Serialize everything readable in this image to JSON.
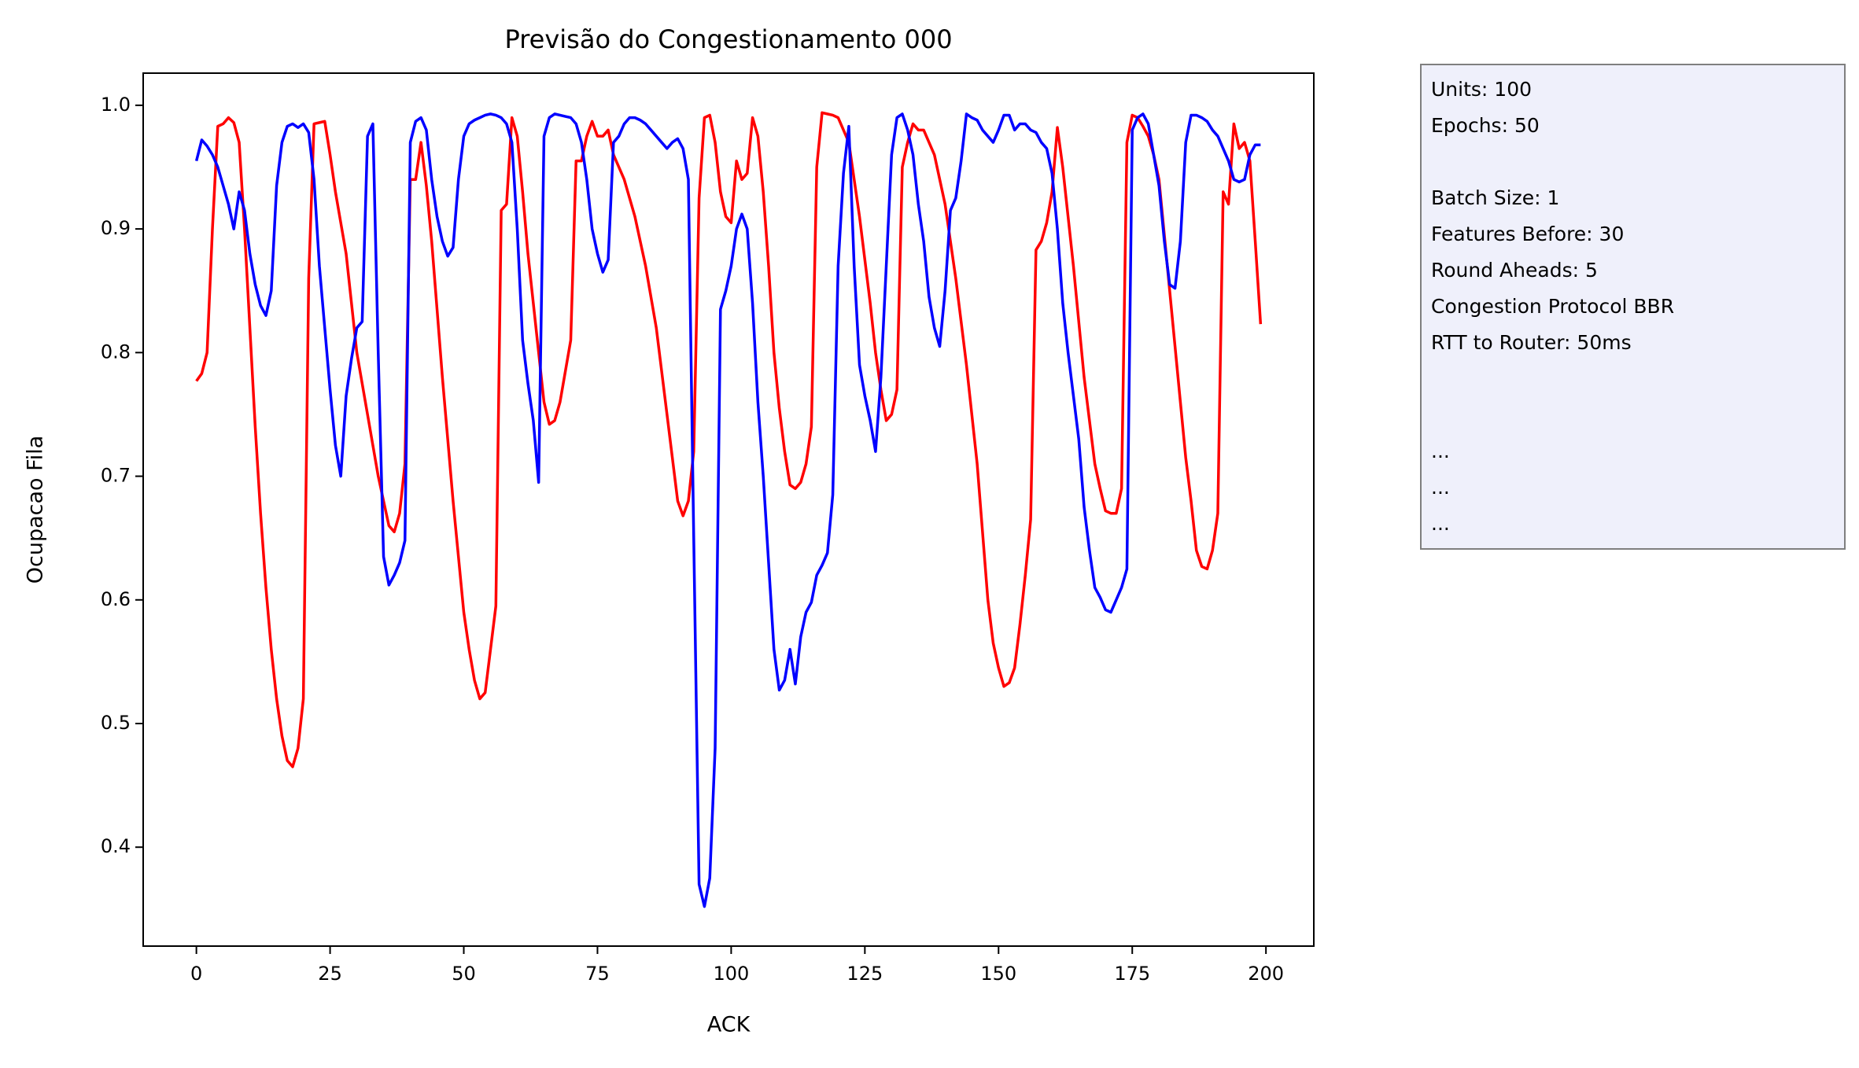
{
  "chart_data": {
    "type": "line",
    "title": "Previsão do Congestionamento 000",
    "xlabel": "ACK",
    "ylabel": "Ocupacao Fila",
    "x": [
      0,
      1,
      2,
      3,
      4,
      5,
      6,
      7,
      8,
      9,
      10,
      11,
      12,
      13,
      14,
      15,
      16,
      17,
      18,
      19,
      20,
      21,
      22,
      23,
      24,
      25,
      26,
      27,
      28,
      29,
      30,
      31,
      32,
      33,
      34,
      35,
      36,
      37,
      38,
      39,
      40,
      41,
      42,
      43,
      44,
      45,
      46,
      47,
      48,
      49,
      50,
      51,
      52,
      53,
      54,
      55,
      56,
      57,
      58,
      59,
      60,
      61,
      62,
      63,
      64,
      65,
      66,
      67,
      68,
      69,
      70,
      71,
      72,
      73,
      74,
      75,
      76,
      77,
      78,
      79,
      80,
      81,
      82,
      83,
      84,
      85,
      86,
      87,
      88,
      89,
      90,
      91,
      92,
      93,
      94,
      95,
      96,
      97,
      98,
      99,
      100,
      101,
      102,
      103,
      104,
      105,
      106,
      107,
      108,
      109,
      110,
      111,
      112,
      113,
      114,
      115,
      116,
      117,
      118,
      119,
      120,
      121,
      122,
      123,
      124,
      125,
      126,
      127,
      128,
      129,
      130,
      131,
      132,
      133,
      134,
      135,
      136,
      137,
      138,
      139,
      140,
      141,
      142,
      143,
      144,
      145,
      146,
      147,
      148,
      149,
      150,
      151,
      152,
      153,
      154,
      155,
      156,
      157,
      158,
      159,
      160,
      161,
      162,
      163,
      164,
      165,
      166,
      167,
      168,
      169,
      170,
      171,
      172,
      173,
      174,
      175,
      176,
      177,
      178,
      179,
      180,
      181,
      182,
      183,
      184,
      185,
      186,
      187,
      188,
      189,
      190,
      191,
      192,
      193,
      194,
      195,
      196,
      197,
      198,
      199
    ],
    "series": [
      {
        "color": "#ff0000",
        "values": [
          0.777,
          0.783,
          0.8,
          0.9,
          0.983,
          0.985,
          0.99,
          0.986,
          0.97,
          0.9,
          0.82,
          0.74,
          0.67,
          0.61,
          0.56,
          0.52,
          0.49,
          0.47,
          0.465,
          0.48,
          0.52,
          0.86,
          0.985,
          0.986,
          0.987,
          0.96,
          0.93,
          0.905,
          0.88,
          0.84,
          0.8,
          0.775,
          0.75,
          0.725,
          0.7,
          0.68,
          0.66,
          0.655,
          0.67,
          0.71,
          0.94,
          0.94,
          0.97,
          0.935,
          0.89,
          0.835,
          0.78,
          0.73,
          0.68,
          0.635,
          0.59,
          0.56,
          0.535,
          0.52,
          0.525,
          0.56,
          0.595,
          0.915,
          0.92,
          0.99,
          0.975,
          0.93,
          0.88,
          0.84,
          0.8,
          0.76,
          0.742,
          0.745,
          0.76,
          0.785,
          0.81,
          0.955,
          0.955,
          0.975,
          0.987,
          0.975,
          0.975,
          0.98,
          0.96,
          0.95,
          0.94,
          0.925,
          0.91,
          0.89,
          0.87,
          0.845,
          0.82,
          0.785,
          0.75,
          0.715,
          0.68,
          0.668,
          0.68,
          0.72,
          0.925,
          0.99,
          0.992,
          0.97,
          0.93,
          0.91,
          0.905,
          0.955,
          0.94,
          0.945,
          0.99,
          0.975,
          0.93,
          0.87,
          0.8,
          0.755,
          0.72,
          0.693,
          0.69,
          0.695,
          0.71,
          0.74,
          0.95,
          0.994,
          0.993,
          0.992,
          0.99,
          0.98,
          0.97,
          0.94,
          0.91,
          0.875,
          0.84,
          0.8,
          0.77,
          0.745,
          0.75,
          0.77,
          0.95,
          0.97,
          0.985,
          0.98,
          0.98,
          0.97,
          0.96,
          0.94,
          0.92,
          0.89,
          0.86,
          0.825,
          0.79,
          0.75,
          0.71,
          0.655,
          0.6,
          0.565,
          0.545,
          0.53,
          0.533,
          0.545,
          0.58,
          0.62,
          0.665,
          0.883,
          0.89,
          0.905,
          0.93,
          0.982,
          0.95,
          0.91,
          0.87,
          0.825,
          0.78,
          0.745,
          0.71,
          0.69,
          0.672,
          0.67,
          0.67,
          0.69,
          0.97,
          0.992,
          0.99,
          0.983,
          0.975,
          0.96,
          0.94,
          0.895,
          0.85,
          0.805,
          0.76,
          0.715,
          0.68,
          0.64,
          0.627,
          0.625,
          0.64,
          0.67,
          0.93,
          0.92,
          0.985,
          0.965,
          0.97,
          0.955,
          0.89,
          0.823
        ]
      },
      {
        "color": "#0000ff",
        "values": [
          0.955,
          0.972,
          0.967,
          0.96,
          0.95,
          0.935,
          0.92,
          0.9,
          0.93,
          0.915,
          0.88,
          0.855,
          0.838,
          0.83,
          0.85,
          0.935,
          0.97,
          0.983,
          0.985,
          0.982,
          0.985,
          0.978,
          0.94,
          0.87,
          0.82,
          0.77,
          0.725,
          0.7,
          0.765,
          0.795,
          0.82,
          0.825,
          0.975,
          0.985,
          0.8,
          0.635,
          0.612,
          0.62,
          0.63,
          0.648,
          0.97,
          0.987,
          0.99,
          0.98,
          0.94,
          0.91,
          0.89,
          0.878,
          0.885,
          0.94,
          0.975,
          0.985,
          0.988,
          0.99,
          0.992,
          0.993,
          0.992,
          0.99,
          0.985,
          0.97,
          0.9,
          0.81,
          0.775,
          0.745,
          0.695,
          0.975,
          0.99,
          0.993,
          0.992,
          0.991,
          0.99,
          0.985,
          0.97,
          0.94,
          0.9,
          0.88,
          0.865,
          0.875,
          0.97,
          0.975,
          0.985,
          0.99,
          0.99,
          0.988,
          0.985,
          0.98,
          0.975,
          0.97,
          0.965,
          0.97,
          0.973,
          0.965,
          0.94,
          0.65,
          0.37,
          0.352,
          0.375,
          0.48,
          0.835,
          0.85,
          0.87,
          0.9,
          0.912,
          0.9,
          0.84,
          0.76,
          0.7,
          0.63,
          0.56,
          0.527,
          0.535,
          0.56,
          0.532,
          0.57,
          0.59,
          0.598,
          0.62,
          0.628,
          0.638,
          0.685,
          0.87,
          0.945,
          0.983,
          0.87,
          0.79,
          0.765,
          0.745,
          0.72,
          0.78,
          0.87,
          0.96,
          0.99,
          0.993,
          0.98,
          0.96,
          0.92,
          0.89,
          0.845,
          0.82,
          0.805,
          0.85,
          0.915,
          0.925,
          0.955,
          0.993,
          0.99,
          0.988,
          0.98,
          0.975,
          0.97,
          0.98,
          0.992,
          0.992,
          0.98,
          0.985,
          0.985,
          0.98,
          0.978,
          0.97,
          0.965,
          0.945,
          0.9,
          0.84,
          0.8,
          0.765,
          0.73,
          0.675,
          0.64,
          0.61,
          0.602,
          0.592,
          0.59,
          0.6,
          0.61,
          0.625,
          0.98,
          0.99,
          0.993,
          0.985,
          0.96,
          0.935,
          0.89,
          0.855,
          0.852,
          0.89,
          0.97,
          0.992,
          0.992,
          0.99,
          0.987,
          0.98,
          0.975,
          0.965,
          0.955,
          0.94,
          0.938,
          0.94,
          0.96,
          0.968,
          0.968
        ]
      }
    ],
    "xlim": [
      -9.95,
      208.95
    ],
    "ylim": [
      0.32,
      1.026
    ],
    "xticks": [
      0,
      25,
      50,
      75,
      100,
      125,
      150,
      175,
      200
    ],
    "yticks": [
      0.4,
      0.5,
      0.6,
      0.7,
      0.8,
      0.9,
      {
        "value": 1,
        "label": "1.0"
      }
    ],
    "grid": false
  },
  "info_box": {
    "groups": [
      [
        "Units: 100",
        "Epochs: 50"
      ],
      [
        "Batch Size: 1",
        "Features Before: 30",
        "Round Aheads: 5",
        "Congestion Protocol BBR",
        "RTT to Router: 50ms"
      ],
      [
        "...",
        "...",
        "..."
      ]
    ]
  }
}
